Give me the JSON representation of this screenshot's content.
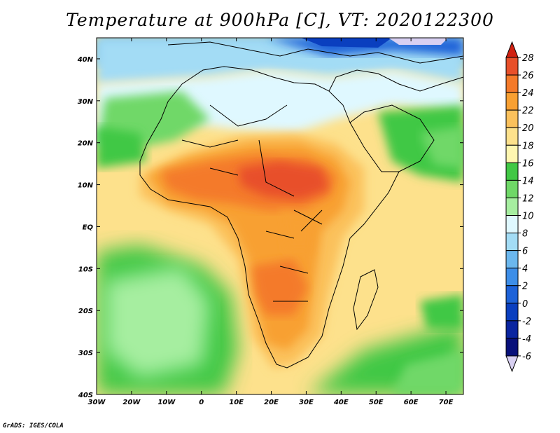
{
  "title": "Temperature at 900hPa [C], VT: 2020122300",
  "credit": "GrADS: IGES/COLA",
  "map": {
    "lon_labels": [
      "30W",
      "20W",
      "10W",
      "0",
      "10E",
      "20E",
      "30E",
      "40E",
      "50E",
      "60E",
      "70E"
    ],
    "lat_labels": [
      "40N",
      "30N",
      "20N",
      "10N",
      "EQ",
      "10S",
      "20S",
      "30S",
      "40S"
    ],
    "lon_range": [
      -30,
      75
    ],
    "lat_range": [
      -40,
      45
    ]
  },
  "colorbar": {
    "levels": [
      "28",
      "26",
      "24",
      "22",
      "20",
      "18",
      "16",
      "14",
      "12",
      "10",
      "8",
      "6",
      "4",
      "2",
      "0",
      "-2",
      "-4",
      "-6"
    ],
    "colors": [
      "#e8502a",
      "#f47a2a",
      "#f8a032",
      "#fbc15c",
      "#fde18c",
      "#fff6b0",
      "#41c845",
      "#6fd867",
      "#a6eea0",
      "#dff8ff",
      "#a3dcf5",
      "#6bb7ee",
      "#3d8ee8",
      "#1d62d8",
      "#0a3fbf",
      "#0a25a0",
      "#08107a",
      "#d8d0f2"
    ],
    "top_color": "#d02010"
  }
}
